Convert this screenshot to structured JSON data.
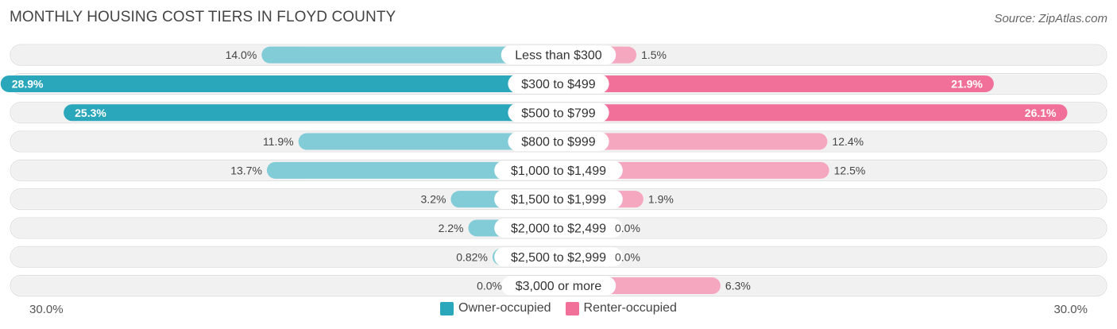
{
  "title": "MONTHLY HOUSING COST TIERS IN FLOYD COUNTY",
  "source": "Source: ZipAtlas.com",
  "colors": {
    "owner_strong": "#2ba7bb",
    "owner_light": "#82ccd7",
    "renter_strong": "#f1709a",
    "renter_light": "#f6a7c0",
    "row_bg": "#f1f1f1"
  },
  "chart_data": {
    "type": "bar",
    "orientation": "horizontal-diverging",
    "categories": [
      "Less than $300",
      "$300 to $499",
      "$500 to $799",
      "$800 to $999",
      "$1,000 to $1,499",
      "$1,500 to $1,999",
      "$2,000 to $2,499",
      "$2,500 to $2,999",
      "$3,000 or more"
    ],
    "series": [
      {
        "name": "Owner-occupied",
        "values": [
          14.0,
          28.9,
          25.3,
          11.9,
          13.7,
          3.2,
          2.2,
          0.82,
          0.0
        ],
        "labels": [
          "14.0%",
          "28.9%",
          "25.3%",
          "11.9%",
          "13.7%",
          "3.2%",
          "2.2%",
          "0.82%",
          "0.0%"
        ]
      },
      {
        "name": "Renter-occupied",
        "values": [
          1.5,
          21.9,
          26.1,
          12.4,
          12.5,
          1.9,
          0.0,
          0.0,
          6.3
        ],
        "labels": [
          "1.5%",
          "21.9%",
          "26.1%",
          "12.4%",
          "12.5%",
          "1.9%",
          "0.0%",
          "0.0%",
          "6.3%"
        ]
      }
    ],
    "xlim": [
      -30,
      30
    ],
    "axis_left_label": "30.0%",
    "axis_right_label": "30.0%",
    "legend_position": "bottom-center"
  }
}
